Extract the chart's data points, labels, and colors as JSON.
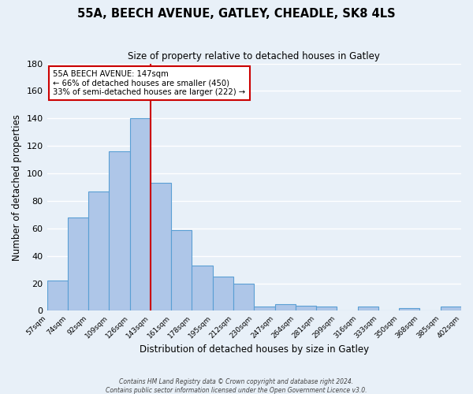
{
  "title": "55A, BEECH AVENUE, GATLEY, CHEADLE, SK8 4LS",
  "subtitle": "Size of property relative to detached houses in Gatley",
  "xlabel": "Distribution of detached houses by size in Gatley",
  "ylabel": "Number of detached properties",
  "bar_labels": [
    "57sqm",
    "74sqm",
    "92sqm",
    "109sqm",
    "126sqm",
    "143sqm",
    "161sqm",
    "178sqm",
    "195sqm",
    "212sqm",
    "230sqm",
    "247sqm",
    "264sqm",
    "281sqm",
    "299sqm",
    "316sqm",
    "333sqm",
    "350sqm",
    "368sqm",
    "385sqm",
    "402sqm"
  ],
  "bar_values": [
    22,
    68,
    87,
    116,
    140,
    93,
    59,
    33,
    25,
    20,
    3,
    5,
    4,
    3,
    0,
    3,
    0,
    2,
    0,
    3
  ],
  "bar_color": "#aec6e8",
  "bar_edge_color": "#5a9fd4",
  "vline_color": "#cc0000",
  "vline_x_index": 5,
  "annotation_title": "55A BEECH AVENUE: 147sqm",
  "annotation_line1": "← 66% of detached houses are smaller (450)",
  "annotation_line2": "33% of semi-detached houses are larger (222) →",
  "annotation_box_color": "#ffffff",
  "annotation_box_edge": "#cc0000",
  "ylim": [
    0,
    180
  ],
  "yticks": [
    0,
    20,
    40,
    60,
    80,
    100,
    120,
    140,
    160,
    180
  ],
  "footer1": "Contains HM Land Registry data © Crown copyright and database right 2024.",
  "footer2": "Contains public sector information licensed under the Open Government Licence v3.0.",
  "background_color": "#e8f0f8",
  "plot_bg_color": "#e8f0f8"
}
